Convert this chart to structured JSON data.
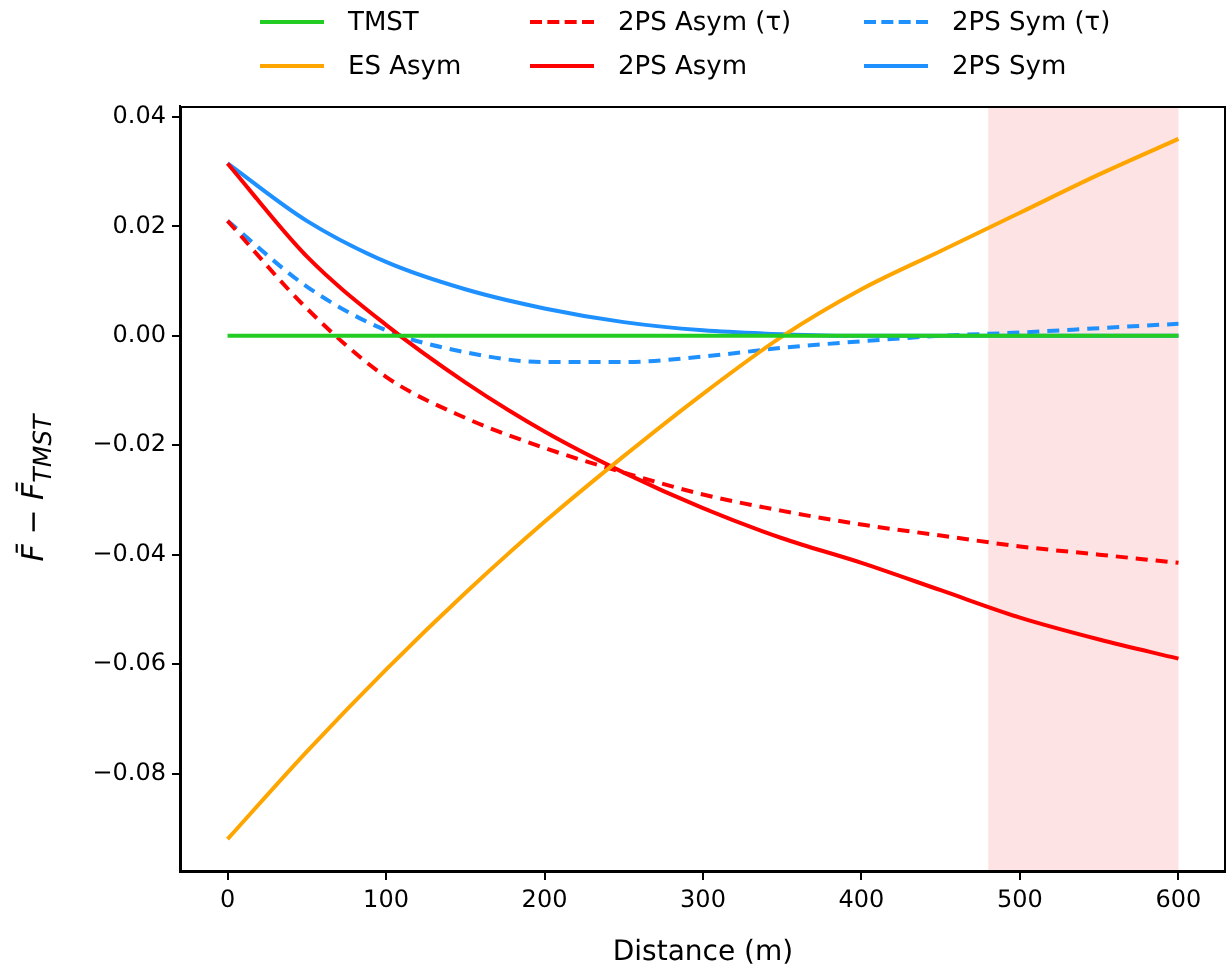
{
  "chart_data": {
    "type": "line",
    "xlabel": "Distance (m)",
    "ylabel": "F̄ − F̄$_{TMST}$",
    "x": [
      0,
      50,
      100,
      150,
      200,
      250,
      300,
      350,
      400,
      450,
      500,
      550,
      600
    ],
    "series": [
      {
        "name": "TMST",
        "color": "#22cc22",
        "line_style": "solid",
        "values": [
          0,
          0,
          0,
          0,
          0,
          0,
          0,
          0,
          0,
          0,
          0,
          0,
          0
        ]
      },
      {
        "name": "ES Asym",
        "color": "#ffa500",
        "line_style": "solid",
        "values": [
          -0.092,
          -0.076,
          -0.061,
          -0.047,
          -0.034,
          -0.022,
          -0.0106,
          -0.0001,
          0.0085,
          0.0155,
          0.0225,
          0.0295,
          0.036
        ]
      },
      {
        "name": "2PS Asym (τ)",
        "color": "#ff0000",
        "line_style": "dashed",
        "values": [
          0.021,
          0.005,
          -0.0075,
          -0.015,
          -0.0205,
          -0.025,
          -0.029,
          -0.032,
          -0.0345,
          -0.0365,
          -0.0385,
          -0.04,
          -0.0415
        ]
      },
      {
        "name": "2PS Asym",
        "color": "#ff0000",
        "line_style": "solid",
        "values": [
          0.0315,
          0.0145,
          0.002,
          -0.0085,
          -0.0175,
          -0.025,
          -0.0315,
          -0.037,
          -0.0415,
          -0.0465,
          -0.0515,
          -0.0555,
          -0.059
        ]
      },
      {
        "name": "2PS Sym (τ)",
        "color": "#1e90ff",
        "line_style": "dashed",
        "values": [
          0.021,
          0.009,
          0.001,
          -0.003,
          -0.0048,
          -0.0048,
          -0.0038,
          -0.0022,
          -0.001,
          0,
          0.0006,
          0.0014,
          0.0022
        ]
      },
      {
        "name": "2PS Sym",
        "color": "#1e90ff",
        "line_style": "solid",
        "values": [
          0.0315,
          0.021,
          0.0135,
          0.0085,
          0.005,
          0.0025,
          0.001,
          0.0003,
          0,
          0,
          0,
          0,
          0
        ]
      }
    ],
    "xlim": [
      -30,
      630
    ],
    "xticks": [
      0,
      100,
      200,
      300,
      400,
      500,
      600
    ],
    "ylim": [
      -0.098,
      0.042
    ],
    "yticks": [
      -0.08,
      -0.06,
      -0.04,
      -0.02,
      {
        "value": 0,
        "label": "0.00"
      },
      0.02,
      0.04
    ],
    "bands": [
      {
        "axis": "x",
        "from": 480,
        "to": 600,
        "color": "#fde3e3"
      }
    ],
    "grid": false,
    "legend": "top",
    "marker": "none"
  }
}
